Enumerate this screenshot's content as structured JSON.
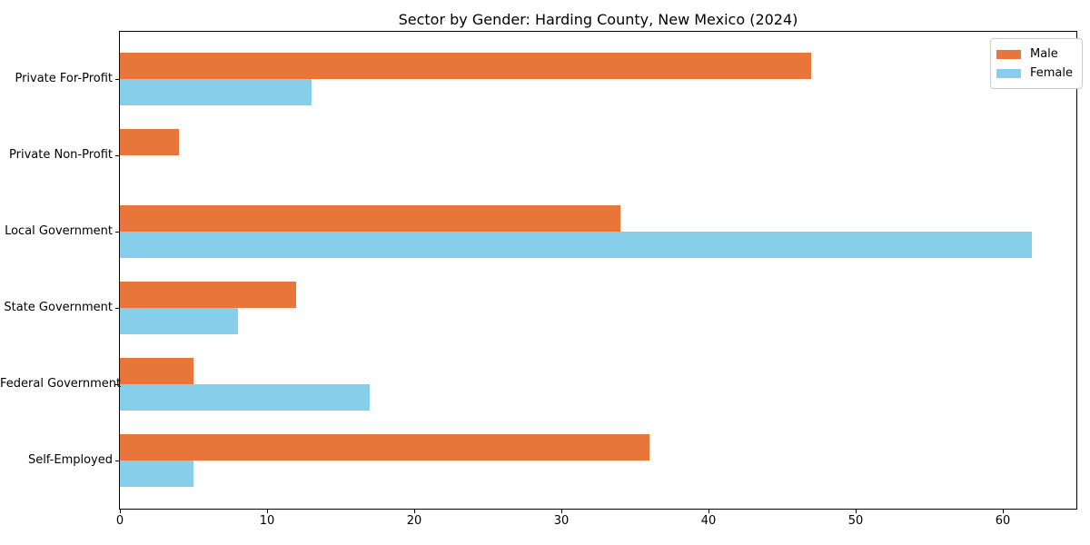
{
  "chart_data": {
    "type": "bar",
    "orientation": "horizontal",
    "title": "Sector by Gender: Harding County, New Mexico (2024)",
    "categories": [
      "Private For-Profit",
      "Private Non-Profit",
      "Local Government",
      "State Government",
      "Federal Government",
      "Self-Employed"
    ],
    "series": [
      {
        "name": "Male",
        "color": "#e8763b",
        "values": [
          47,
          4,
          34,
          12,
          5,
          36
        ]
      },
      {
        "name": "Female",
        "color": "#87ceeb",
        "values": [
          13,
          0,
          62,
          8,
          17,
          5
        ]
      }
    ],
    "xlabel": "",
    "ylabel": "",
    "xlim": [
      0,
      65
    ],
    "xticks": [
      0,
      10,
      20,
      30,
      40,
      50,
      60
    ],
    "grid": false,
    "legend": {
      "position": "upper right",
      "entries": [
        "Male",
        "Female"
      ]
    },
    "colors": {
      "spine": "#000000",
      "background": "#ffffff",
      "legend_border": "#cccccc"
    }
  }
}
